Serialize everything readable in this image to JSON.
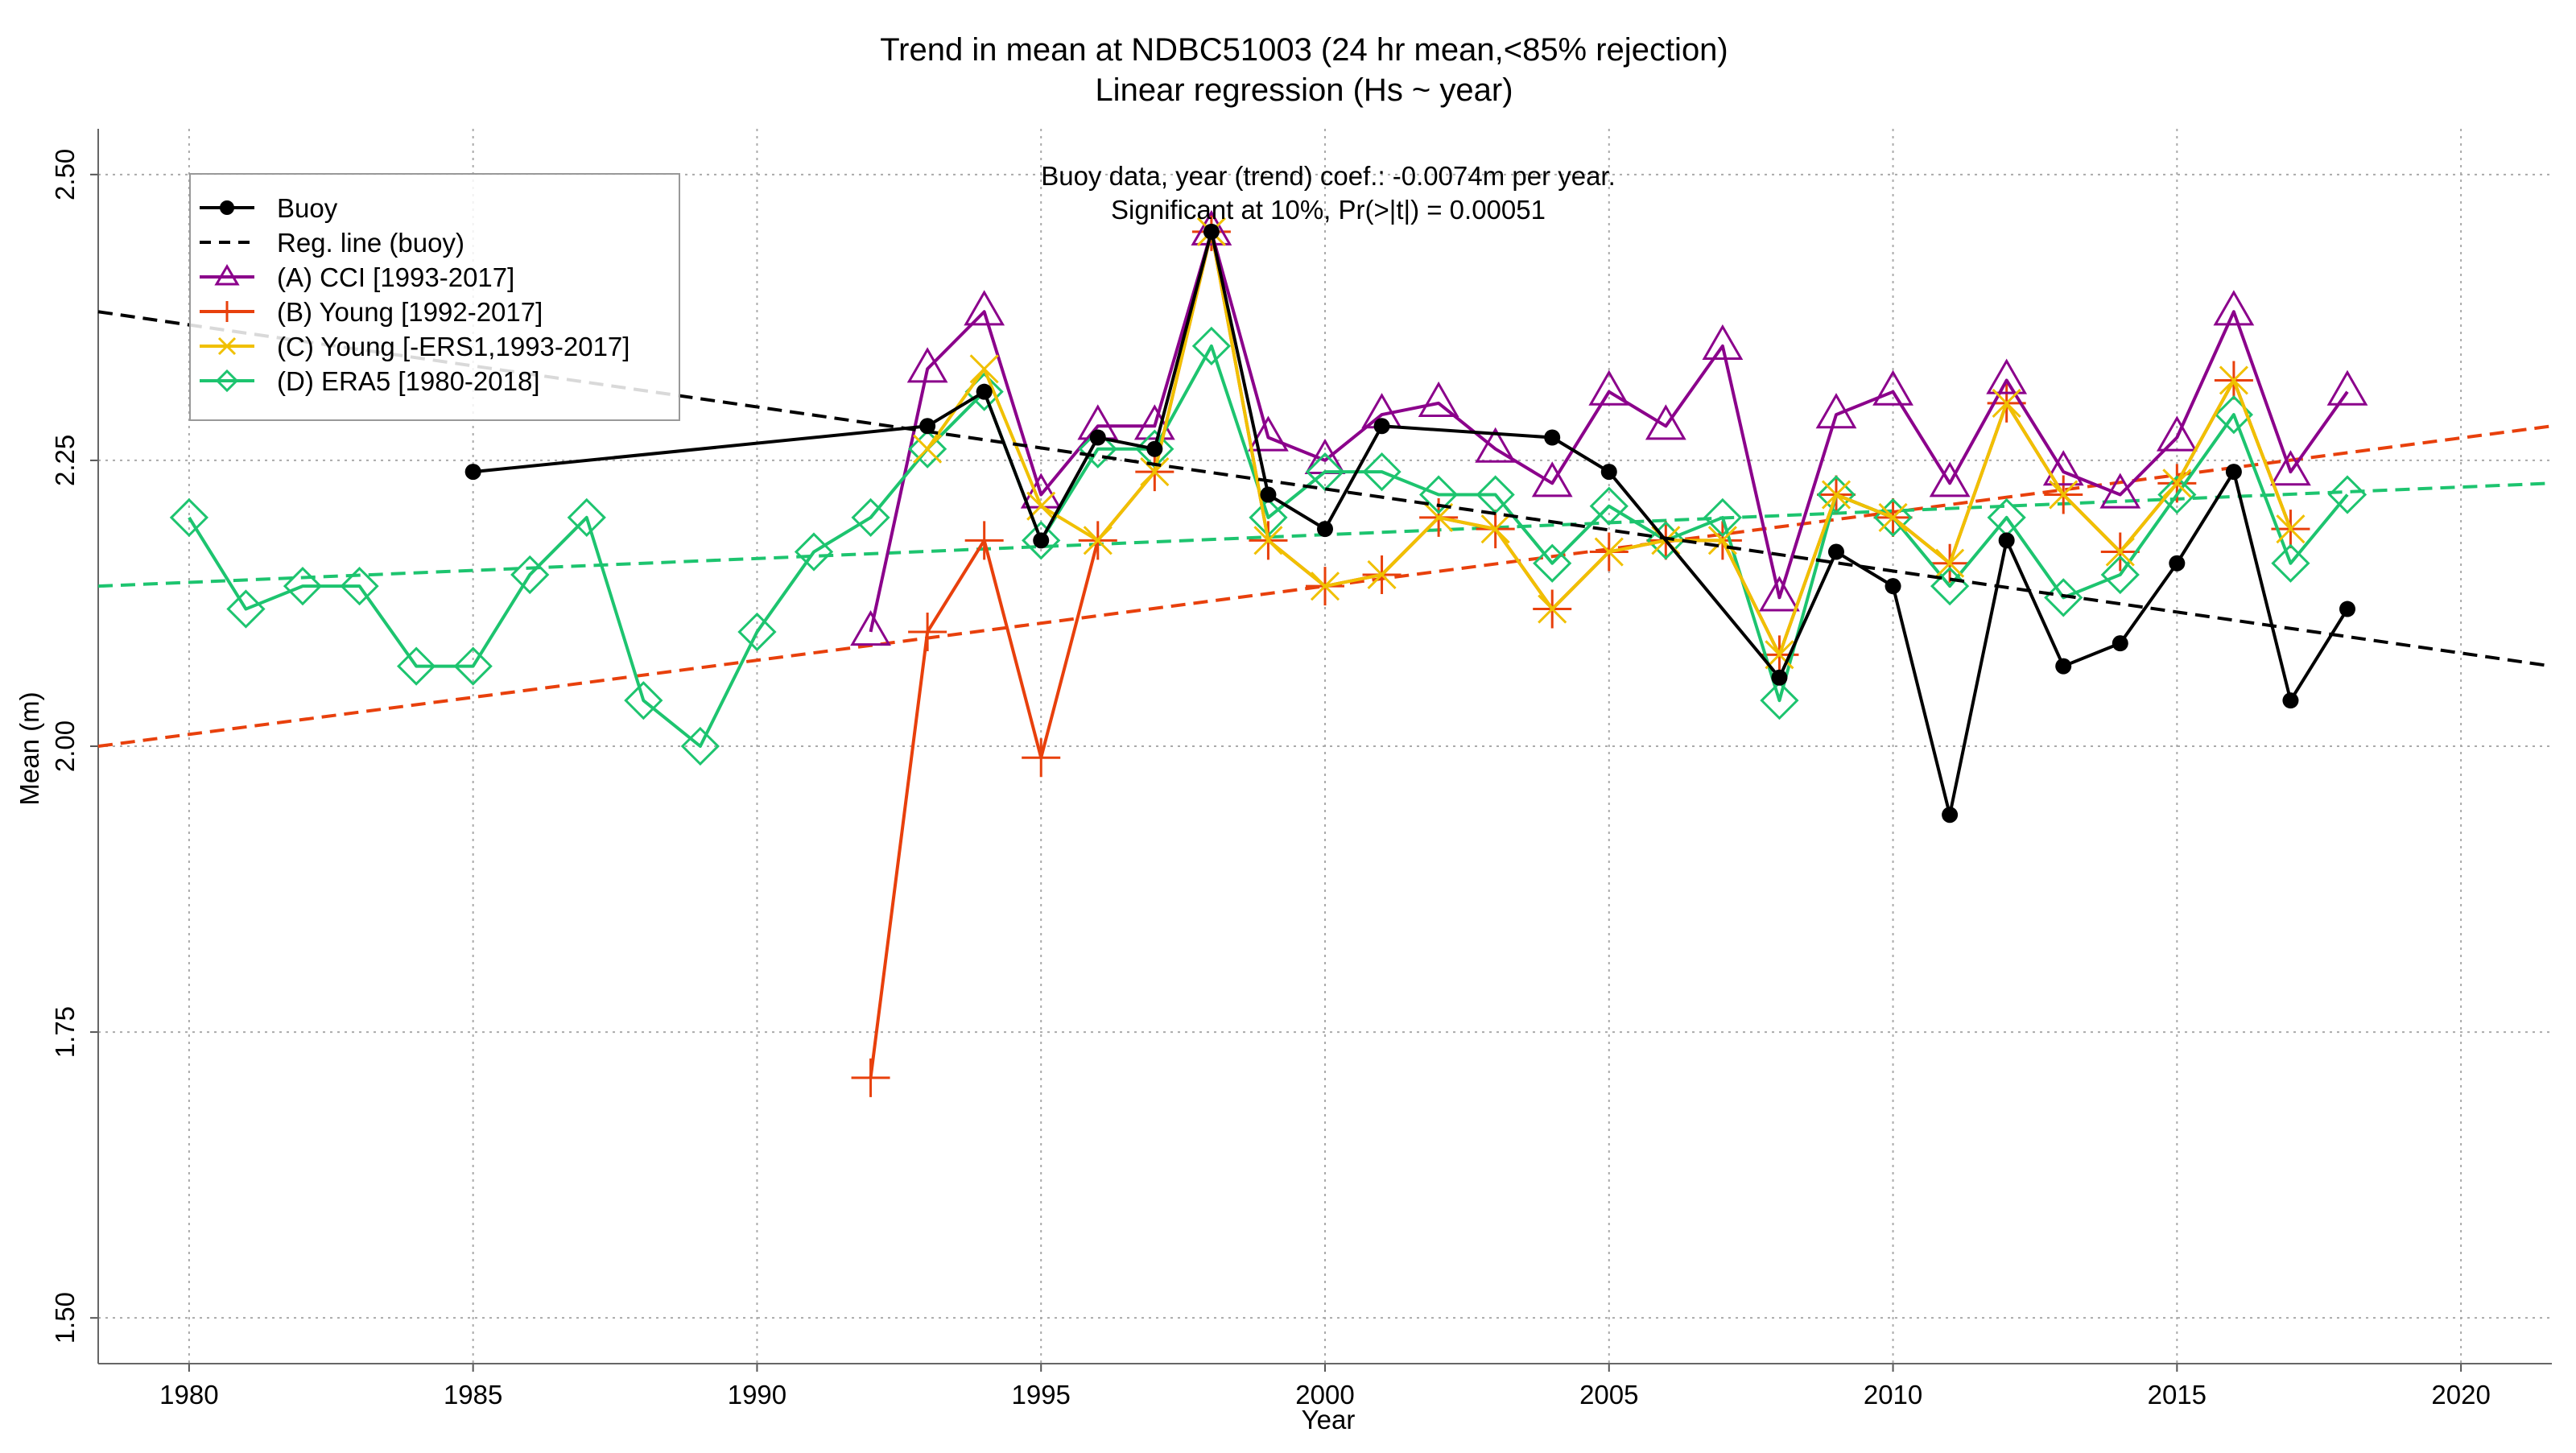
{
  "chart_data": {
    "type": "line",
    "title": "Trend in mean at NDBC51003 (24 hr mean,<85% rejection)",
    "subtitle": "Linear regression (Hs ~ year)",
    "annotation": {
      "line1": "Buoy data, year (trend) coef.: -0.0074m per year.",
      "line2": "Significant at 10%, Pr(>|t|) = 0.00051"
    },
    "xlabel": "Year",
    "ylabel": "Mean (m)",
    "xlim": [
      1978.4,
      2021.6
    ],
    "ylim": [
      1.46,
      2.54
    ],
    "xticks": [
      1980,
      1985,
      1990,
      1995,
      2000,
      2005,
      2010,
      2015,
      2020
    ],
    "yticks": [
      1.5,
      1.75,
      2.0,
      2.25,
      2.5
    ],
    "ytick_labels": [
      "1.50",
      "1.75",
      "2.00",
      "2.25",
      "2.50"
    ],
    "grid": true,
    "legend_position": "top-left",
    "series": [
      {
        "name": "Buoy",
        "color": "#000000",
        "marker": "filled-circle",
        "x": [
          1985,
          1993,
          1994,
          1995,
          1996,
          1997,
          1998,
          1999,
          2000,
          2001,
          2004,
          2005,
          2008,
          2009,
          2010,
          2011,
          2012,
          2013,
          2014,
          2015,
          2016,
          2017,
          2018
        ],
        "y": [
          2.24,
          2.28,
          2.31,
          2.18,
          2.27,
          2.26,
          2.45,
          2.22,
          2.19,
          2.28,
          2.27,
          2.24,
          2.06,
          2.17,
          2.14,
          1.94,
          2.18,
          2.07,
          2.09,
          2.16,
          2.24,
          2.04,
          2.12
        ]
      },
      {
        "name": "Reg. line (buoy)",
        "color": "#000000",
        "dashed": true,
        "x": [
          1978.4,
          2021.6
        ],
        "y": [
          2.38,
          2.07
        ]
      },
      {
        "name": "(A) CCI [1993-2017]",
        "color": "#8b008b",
        "marker": "open-triangle",
        "x": [
          1992,
          1993,
          1994,
          1995,
          1996,
          1997,
          1998,
          1999,
          2000,
          2001,
          2002,
          2003,
          2004,
          2005,
          2006,
          2007,
          2008,
          2009,
          2010,
          2011,
          2012,
          2013,
          2014,
          2015,
          2016,
          2017,
          2018
        ],
        "y": [
          2.1,
          2.33,
          2.38,
          2.22,
          2.28,
          2.28,
          2.45,
          2.27,
          2.25,
          2.29,
          2.3,
          2.26,
          2.23,
          2.31,
          2.28,
          2.35,
          2.13,
          2.29,
          2.31,
          2.23,
          2.32,
          2.24,
          2.22,
          2.27,
          2.38,
          2.24,
          2.31
        ]
      },
      {
        "name": "(B) Young [1992-2017]",
        "color": "#e8400c",
        "marker": "plus",
        "x": [
          1992,
          1993,
          1994,
          1995,
          1996,
          1997,
          1998,
          1999,
          2000,
          2001,
          2002,
          2003,
          2004,
          2005,
          2006,
          2007,
          2008,
          2009,
          2010,
          2011,
          2012,
          2013,
          2014,
          2015,
          2016,
          2017
        ],
        "y": [
          1.71,
          2.1,
          2.18,
          1.99,
          2.18,
          2.24,
          2.45,
          2.18,
          2.14,
          2.15,
          2.2,
          2.19,
          2.12,
          2.17,
          2.18,
          2.18,
          2.08,
          2.22,
          2.2,
          2.16,
          2.3,
          2.22,
          2.17,
          2.23,
          2.32,
          2.19
        ]
      },
      {
        "name": "(C) Young [-ERS1,1993-2017]",
        "color": "#f0c000",
        "marker": "x",
        "x": [
          1993,
          1994,
          1995,
          1996,
          1997,
          1998,
          1999,
          2000,
          2001,
          2002,
          2003,
          2004,
          2005,
          2006,
          2007,
          2008,
          2009,
          2010,
          2011,
          2012,
          2013,
          2014,
          2015,
          2016,
          2017
        ],
        "y": [
          2.26,
          2.33,
          2.21,
          2.18,
          2.24,
          2.45,
          2.18,
          2.14,
          2.15,
          2.2,
          2.19,
          2.12,
          2.17,
          2.18,
          2.18,
          2.08,
          2.22,
          2.2,
          2.16,
          2.3,
          2.22,
          2.17,
          2.23,
          2.32,
          2.19
        ]
      },
      {
        "name": "(D) ERA5 [1980-2018]",
        "color": "#1dc46f",
        "marker": "open-diamond",
        "x": [
          1980,
          1981,
          1982,
          1983,
          1984,
          1985,
          1986,
          1987,
          1988,
          1989,
          1990,
          1991,
          1992,
          1993,
          1994,
          1995,
          1996,
          1997,
          1998,
          1999,
          2000,
          2001,
          2002,
          2003,
          2004,
          2005,
          2006,
          2007,
          2008,
          2009,
          2010,
          2011,
          2012,
          2013,
          2014,
          2015,
          2016,
          2017,
          2018
        ],
        "y": [
          2.2,
          2.12,
          2.14,
          2.14,
          2.07,
          2.07,
          2.15,
          2.2,
          2.04,
          2.0,
          2.1,
          2.17,
          2.2,
          2.26,
          2.31,
          2.18,
          2.26,
          2.26,
          2.35,
          2.2,
          2.24,
          2.24,
          2.22,
          2.22,
          2.16,
          2.21,
          2.18,
          2.2,
          2.04,
          2.22,
          2.2,
          2.14,
          2.2,
          2.13,
          2.15,
          2.22,
          2.29,
          2.16,
          2.22
        ]
      }
    ],
    "trend_lines": [
      {
        "color": "#e8400c",
        "x": [
          1978.4,
          2021.6
        ],
        "y": [
          2.0,
          2.28
        ]
      },
      {
        "color": "#1dc46f",
        "x": [
          1978.4,
          2021.6
        ],
        "y": [
          2.14,
          2.23
        ]
      }
    ]
  }
}
